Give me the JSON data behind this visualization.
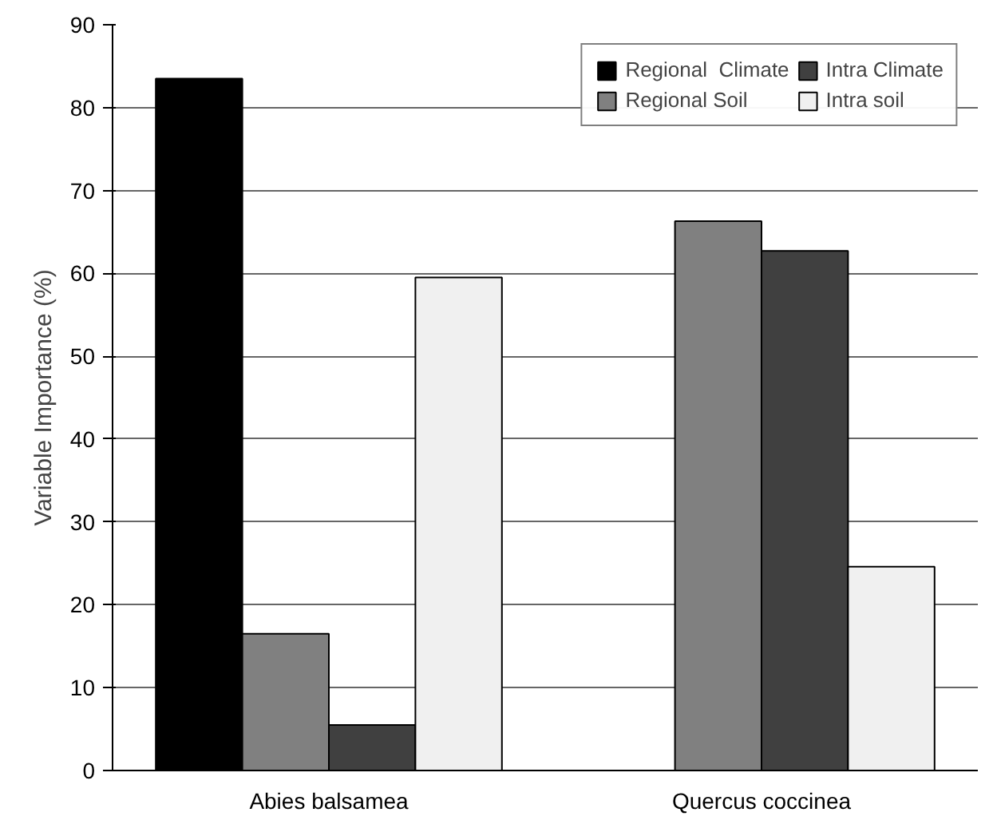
{
  "chart_data": {
    "type": "bar",
    "ylabel": "Variable Importance (%)",
    "categories": [
      "Abies balsamea",
      "Quercus coccinea"
    ],
    "series": [
      {
        "name": "Regional  Climate",
        "color": "#000000",
        "values": [
          83.5,
          0
        ]
      },
      {
        "name": "Regional Soil",
        "color": "#808080",
        "values": [
          16.5,
          66.3
        ]
      },
      {
        "name": "Intra Climate",
        "color": "#404040",
        "values": [
          5.5,
          62.7
        ]
      },
      {
        "name": "Intra soil",
        "color": "#f0f0f0",
        "values": [
          59.5,
          24.6
        ]
      }
    ],
    "ylim": [
      0,
      90
    ],
    "yticks": [
      0,
      10,
      20,
      30,
      40,
      50,
      60,
      70,
      80,
      90
    ],
    "grid": "y",
    "legend": "top right"
  }
}
